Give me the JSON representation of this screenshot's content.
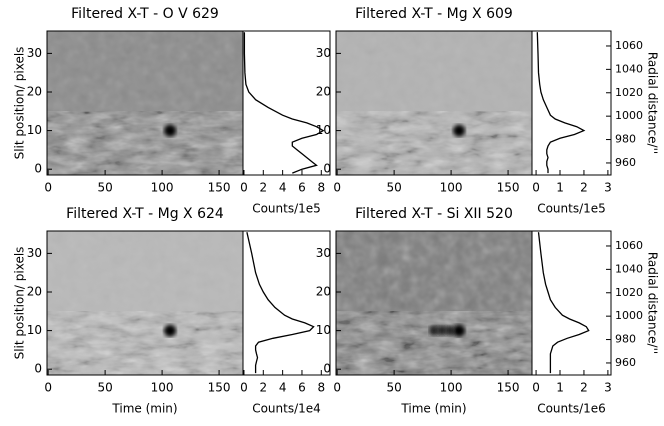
{
  "chart_data": [
    {
      "type": "xt-profile",
      "title": "Filtered X-T - O V 629",
      "image": {
        "xlim": [
          -1,
          171
        ],
        "xticks": [
          0,
          50,
          100,
          150
        ],
        "ylim": [
          -1.5,
          35.8
        ],
        "yticks": [
          0,
          10,
          20,
          30
        ],
        "ylabel": "Slit position/ pixels"
      },
      "profile": {
        "xlim": [
          -0.1,
          8.9
        ],
        "xticks": [
          0,
          2,
          4,
          6,
          8
        ],
        "xlabel": "Counts/1e5",
        "color": "#000000",
        "positions": [
          35.5,
          30,
          25,
          22,
          20,
          18,
          16,
          14,
          13,
          12,
          11,
          10,
          9,
          8,
          7,
          6,
          5,
          4,
          3,
          2,
          1,
          0,
          -1
        ],
        "values": [
          0.05,
          0.05,
          0.1,
          0.2,
          0.5,
          1.2,
          2.5,
          4,
          5,
          6.5,
          7.5,
          8.2,
          7.5,
          6,
          5,
          5,
          5.5,
          6,
          6.5,
          7,
          7.5,
          6,
          5
        ]
      }
    },
    {
      "type": "xt-profile",
      "title": "Filtered X-T - Mg X 609",
      "image": {
        "xlim": [
          -1,
          171
        ],
        "xticks": [
          0,
          50,
          100,
          150
        ],
        "ylim": [
          -1.5,
          35.8
        ],
        "yticks": [
          0,
          10,
          20,
          30
        ]
      },
      "profile": {
        "xlim": [
          -0.17,
          3.13
        ],
        "xticks": [
          0,
          1,
          2,
          3
        ],
        "xlabel": "Counts/1e5",
        "color": "#000000",
        "y2lim": [
          949.7,
          1072.8
        ],
        "y2ticks": [
          960,
          980,
          1000,
          1020,
          1040,
          1060
        ],
        "y2label": "Radial distance/''",
        "positions": [
          35.5,
          30,
          25,
          22,
          20,
          18,
          16,
          14,
          13,
          12,
          11,
          10,
          9,
          8,
          7,
          6,
          5,
          4,
          3,
          2,
          1,
          0,
          -1
        ],
        "values": [
          0.05,
          0.08,
          0.1,
          0.15,
          0.2,
          0.3,
          0.45,
          0.6,
          0.8,
          1.2,
          1.7,
          2.0,
          1.6,
          1.0,
          0.6,
          0.5,
          0.45,
          0.45,
          0.5,
          0.45,
          0.45,
          0.5,
          0.5
        ]
      }
    },
    {
      "type": "xt-profile",
      "title": "Filtered X-T - Mg X 624",
      "image": {
        "xlim": [
          -1,
          171
        ],
        "xticks": [
          0,
          50,
          100,
          150
        ],
        "ylim": [
          -1.5,
          35.8
        ],
        "yticks": [
          0,
          10,
          20,
          30
        ],
        "xlabel": "Time (min)",
        "ylabel": "Slit position/ pixels"
      },
      "profile": {
        "xlim": [
          -0.1,
          8.9
        ],
        "xticks": [
          0,
          2,
          4,
          6,
          8
        ],
        "xlabel": "Counts/1e4",
        "color": "#000000",
        "positions": [
          35.5,
          30,
          25,
          22,
          20,
          18,
          16,
          14,
          13,
          12,
          11,
          10,
          9,
          8,
          7,
          6,
          5,
          4,
          3,
          2,
          1,
          0,
          -1
        ],
        "values": [
          0.3,
          0.8,
          1.2,
          1.6,
          2,
          2.5,
          3.2,
          4.2,
          5,
          6.3,
          7.2,
          6.8,
          5,
          3,
          1.5,
          1.2,
          1.2,
          1.3,
          1.4,
          1.3,
          1.2,
          1.2,
          1.2
        ]
      }
    },
    {
      "type": "xt-profile",
      "title": "Filtered X-T - Si XII 520",
      "image": {
        "xlim": [
          -1,
          171
        ],
        "xticks": [
          0,
          50,
          100,
          150
        ],
        "ylim": [
          -1.5,
          35.8
        ],
        "yticks": [
          0,
          10,
          20,
          30
        ],
        "xlabel": "Time (min)"
      },
      "profile": {
        "xlim": [
          -0.17,
          3.13
        ],
        "xticks": [
          0,
          1,
          2,
          3
        ],
        "xlabel": "Counts/1e6",
        "color": "#000000",
        "y2lim": [
          949.7,
          1072.8
        ],
        "y2ticks": [
          960,
          980,
          1000,
          1020,
          1040,
          1060
        ],
        "y2label": "Radial distance/''",
        "positions": [
          35.5,
          30,
          25,
          22,
          20,
          18,
          16,
          14,
          13,
          12,
          11,
          10,
          9,
          8,
          7,
          6,
          5,
          4,
          3,
          2,
          1,
          0,
          -1
        ],
        "values": [
          0.1,
          0.2,
          0.3,
          0.4,
          0.5,
          0.6,
          0.8,
          1.1,
          1.4,
          1.8,
          2.1,
          2.2,
          1.8,
          1.3,
          0.9,
          0.7,
          0.65,
          0.6,
          0.6,
          0.6,
          0.6,
          0.6,
          0.6
        ]
      }
    }
  ]
}
